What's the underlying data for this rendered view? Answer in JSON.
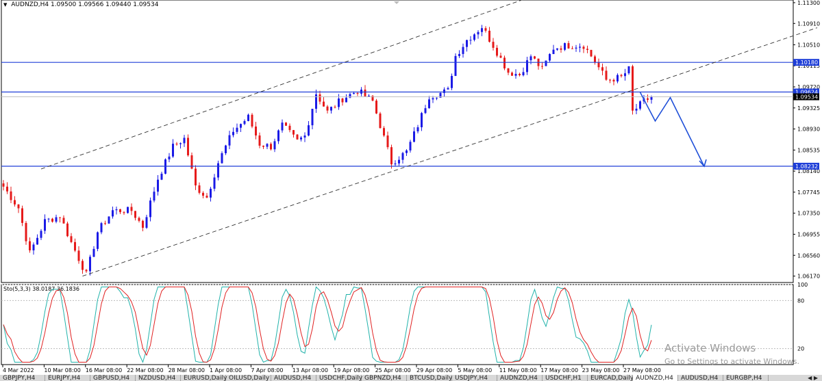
{
  "header": {
    "symbol": "AUDNZD,H4",
    "ohlc": "1.09500 1.09566 1.09440 1.09534"
  },
  "indicator": {
    "label": "Sto(5,3,3) 38.0187 36.1836",
    "levels": [
      100,
      80,
      20
    ]
  },
  "price_axis": {
    "ticks": [
      "1.11300",
      "1.10910",
      "1.10510",
      "1.10115",
      "1.09720",
      "1.09325",
      "1.08930",
      "1.08535",
      "1.08140",
      "1.07745",
      "1.07350",
      "1.06955",
      "1.06560",
      "1.06170"
    ],
    "labels": [
      {
        "text": "1.10180",
        "color": "#1f3fd8"
      },
      {
        "text": "1.09624",
        "color": "#1f3fd8"
      },
      {
        "text": "1.09534",
        "color": "#000000"
      },
      {
        "text": "1.08232",
        "color": "#1f3fd8"
      }
    ]
  },
  "time_axis": {
    "ticks": [
      "4 Mar 2022",
      "10 Mar 08:00",
      "16 Mar 08:00",
      "22 Mar 08:00",
      "28 Mar 08:00",
      "1 Apr 08:00",
      "7 Apr 08:00",
      "13 Apr 08:00",
      "19 Apr 08:00",
      "25 Apr 08:00",
      "29 Apr 08:00",
      "5 May 08:00",
      "11 May 08:00",
      "17 May 08:00",
      "23 May 08:00",
      "27 May 08:00"
    ]
  },
  "chart_data": {
    "type": "candlestick",
    "symbol": "AUDNZD",
    "timeframe": "H4",
    "ylim": [
      1.0605,
      1.1135
    ],
    "horizontal_lines": [
      {
        "value": 1.1018,
        "color": "#1f3fd8"
      },
      {
        "value": 1.09624,
        "color": "#1f3fd8"
      },
      {
        "value": 1.08232,
        "color": "#1f3fd8"
      }
    ],
    "trendlines": [
      {
        "style": "dashed",
        "from": {
          "bar": 10,
          "price": 1.0818
        },
        "to": {
          "bar": 138,
          "price": 1.1136
        }
      },
      {
        "style": "dashed",
        "from": {
          "bar": 21,
          "price": 1.0617
        },
        "to": {
          "bar": 216,
          "price": 1.1083
        }
      }
    ],
    "projection": {
      "color": "#1f4fd8",
      "points": [
        {
          "bar": 169,
          "price": 1.0962
        },
        {
          "bar": 173,
          "price": 1.0908
        },
        {
          "bar": 177,
          "price": 1.0952
        },
        {
          "bar": 186,
          "price": 1.0823
        }
      ]
    },
    "anchors": [
      {
        "bar": 0,
        "price": 1.0785
      },
      {
        "bar": 4,
        "price": 1.0745
      },
      {
        "bar": 7,
        "price": 1.066
      },
      {
        "bar": 11,
        "price": 1.072
      },
      {
        "bar": 15,
        "price": 1.073
      },
      {
        "bar": 18,
        "price": 1.068
      },
      {
        "bar": 22,
        "price": 1.062
      },
      {
        "bar": 25,
        "price": 1.07
      },
      {
        "bar": 29,
        "price": 1.074
      },
      {
        "bar": 34,
        "price": 1.074
      },
      {
        "bar": 37,
        "price": 1.071
      },
      {
        "bar": 41,
        "price": 1.08
      },
      {
        "bar": 45,
        "price": 1.086
      },
      {
        "bar": 48,
        "price": 1.0875
      },
      {
        "bar": 51,
        "price": 1.0785
      },
      {
        "bar": 54,
        "price": 1.0765
      },
      {
        "bar": 57,
        "price": 1.083
      },
      {
        "bar": 61,
        "price": 1.089
      },
      {
        "bar": 65,
        "price": 1.0915
      },
      {
        "bar": 68,
        "price": 1.0865
      },
      {
        "bar": 71,
        "price": 1.086
      },
      {
        "bar": 74,
        "price": 1.09
      },
      {
        "bar": 78,
        "price": 1.087
      },
      {
        "bar": 80,
        "price": 1.088
      },
      {
        "bar": 83,
        "price": 1.096
      },
      {
        "bar": 86,
        "price": 1.0925
      },
      {
        "bar": 90,
        "price": 1.095
      },
      {
        "bar": 94,
        "price": 1.0965
      },
      {
        "bar": 98,
        "price": 1.0945
      },
      {
        "bar": 100,
        "price": 1.09
      },
      {
        "bar": 103,
        "price": 1.083
      },
      {
        "bar": 107,
        "price": 1.085
      },
      {
        "bar": 110,
        "price": 1.09
      },
      {
        "bar": 113,
        "price": 1.0955
      },
      {
        "bar": 116,
        "price": 1.096
      },
      {
        "bar": 118,
        "price": 1.0965
      },
      {
        "bar": 120,
        "price": 1.103
      },
      {
        "bar": 123,
        "price": 1.106
      },
      {
        "bar": 127,
        "price": 1.1085
      },
      {
        "bar": 130,
        "price": 1.105
      },
      {
        "bar": 134,
        "price": 1.1
      },
      {
        "bar": 137,
        "price": 1.0995
      },
      {
        "bar": 140,
        "price": 1.103
      },
      {
        "bar": 143,
        "price": 1.1005
      },
      {
        "bar": 146,
        "price": 1.1045
      },
      {
        "bar": 150,
        "price": 1.105
      },
      {
        "bar": 154,
        "price": 1.105
      },
      {
        "bar": 157,
        "price": 1.102
      },
      {
        "bar": 160,
        "price": 1.0985
      },
      {
        "bar": 164,
        "price": 1.099
      },
      {
        "bar": 166,
        "price": 1.1005
      },
      {
        "bar": 167,
        "price": 1.0925
      },
      {
        "bar": 170,
        "price": 1.0945
      },
      {
        "bar": 172,
        "price": 1.0953
      }
    ],
    "stochastic": {
      "period": "5,3,3",
      "main": 38.0187,
      "signal": 36.1836
    }
  },
  "tabs": [
    "GBPJPY,H4",
    "EURJPY,H4",
    "GBPUSD,H4",
    "NZDUSD,H4",
    "EURUSD,Daily",
    "OILUSD,Daily",
    "AUDUSD,H4",
    "USDCHF,Daily",
    "GBPNZD,H4",
    "BTCUSD,Daily",
    "USDJPY,H4",
    "AUDNZD,H4",
    "USDCHF,H1",
    "EURCAD,Daily",
    "AUDNZD,H4",
    "AUDUSD,H4",
    "EURGBP,H4"
  ],
  "active_tab_index": 14,
  "watermark": {
    "line1": "Activate Windows",
    "line2": "Go to Settings to activate Windows."
  }
}
